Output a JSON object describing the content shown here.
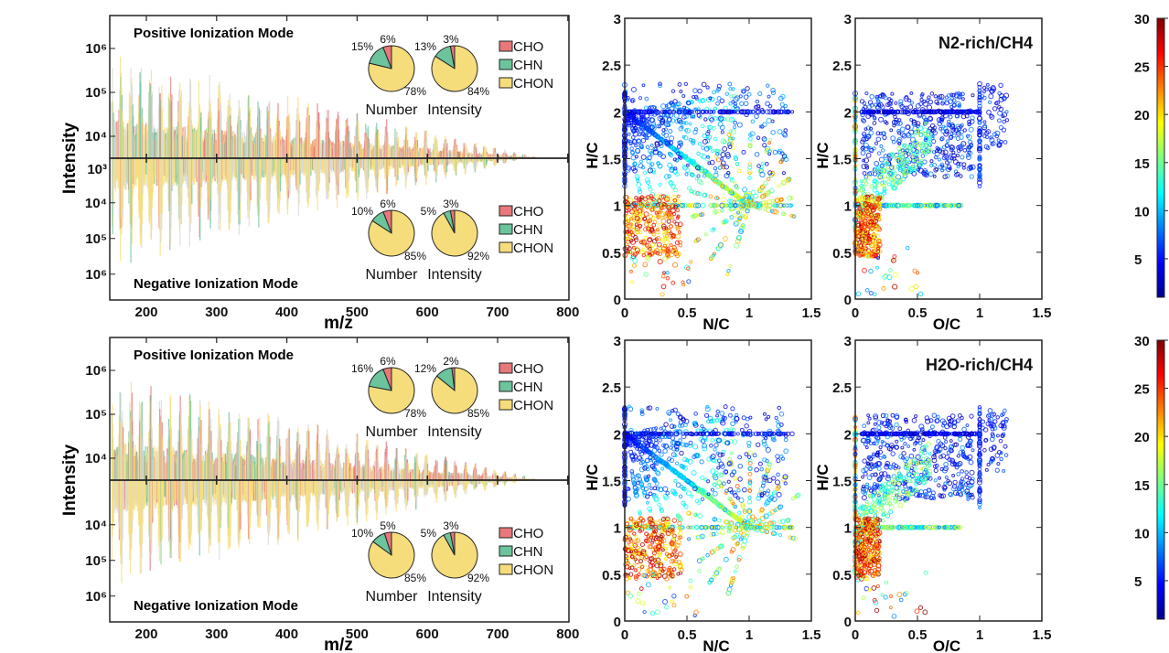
{
  "chart_data": [
    {
      "type": "bar",
      "panel": "spectra-n2-rich",
      "xlabel": "m/z",
      "ylabel": "Intensity",
      "xlim": [
        150,
        800
      ],
      "xticks": [
        "200",
        "300",
        "400",
        "500",
        "600",
        "700",
        "800"
      ],
      "yscale": "log",
      "yticks_positive": [
        "10⁶",
        "10⁵",
        "10⁴",
        "10³"
      ],
      "yticks_negative": [
        "10⁴",
        "10⁵",
        "10⁶"
      ],
      "positive_title": "Positive Ionization Mode",
      "negative_title": "Negative Ionization Mode",
      "legend": [
        "CHO",
        "CHN",
        "CHON"
      ],
      "pies": {
        "positive": {
          "number": {
            "label": "Number",
            "values": [
              6,
              15,
              78
            ],
            "labels": [
              "6%",
              "15%",
              "78%"
            ]
          },
          "intensity": {
            "label": "Intensity",
            "values": [
              3,
              13,
              84
            ],
            "labels": [
              "3%",
              "13%",
              "84%"
            ]
          }
        },
        "negative": {
          "number": {
            "label": "Number",
            "values": [
              6,
              10,
              85
            ],
            "labels": [
              "6%",
              "10%",
              "85%"
            ]
          },
          "intensity": {
            "label": "Intensity",
            "values": [
              3,
              5,
              92
            ],
            "labels": [
              "3%",
              "5%",
              "92%"
            ]
          }
        }
      }
    },
    {
      "type": "bar",
      "panel": "spectra-h2o-rich",
      "xlabel": "m/z",
      "ylabel": "Intensity",
      "xlim": [
        150,
        800
      ],
      "xticks": [
        "200",
        "300",
        "400",
        "500",
        "600",
        "700",
        "800"
      ],
      "yscale": "log",
      "yticks_positive": [
        "10⁶",
        "10⁵",
        "10⁴"
      ],
      "yticks_negative": [
        "10⁴",
        "10⁵",
        "10⁶"
      ],
      "positive_title": "Positive Ionization Mode",
      "negative_title": "Negative Ionization Mode",
      "legend": [
        "CHO",
        "CHN",
        "CHON"
      ],
      "pies": {
        "positive": {
          "number": {
            "label": "Number",
            "values": [
              6,
              16,
              78
            ],
            "labels": [
              "6%",
              "16%",
              "78%"
            ]
          },
          "intensity": {
            "label": "Intensity",
            "values": [
              2,
              12,
              85
            ],
            "labels": [
              "2%",
              "12%",
              "85%"
            ]
          }
        },
        "negative": {
          "number": {
            "label": "Number",
            "values": [
              5,
              10,
              85
            ],
            "labels": [
              "5%",
              "10%",
              "85%"
            ]
          },
          "intensity": {
            "label": "Intensity",
            "values": [
              3,
              5,
              92
            ],
            "labels": [
              "3%",
              "5%",
              "92%"
            ]
          }
        }
      }
    },
    {
      "type": "scatter",
      "panel": "nc-n2",
      "xlabel": "N/C",
      "ylabel": "H/C",
      "xlim": [
        0,
        1.5
      ],
      "ylim": [
        0,
        3
      ],
      "xticks": [
        "0",
        "0.5",
        "1",
        "1.5"
      ],
      "yticks": [
        "0",
        "0.5",
        "1",
        "1.5",
        "2",
        "2.5",
        "3"
      ]
    },
    {
      "type": "scatter",
      "panel": "oc-n2",
      "xlabel": "O/C",
      "ylabel": "H/C",
      "xlim": [
        0,
        1.5
      ],
      "ylim": [
        0,
        3
      ],
      "xticks": [
        "0",
        "0.5",
        "1",
        "1.5"
      ],
      "yticks": [
        "0",
        "0.5",
        "1",
        "1.5",
        "2",
        "2.5",
        "3"
      ],
      "title": "N2-rich/CH4"
    },
    {
      "type": "scatter",
      "panel": "nc-h2o",
      "xlabel": "N/C",
      "ylabel": "H/C",
      "xlim": [
        0,
        1.5
      ],
      "ylim": [
        0,
        3
      ],
      "xticks": [
        "0",
        "0.5",
        "1",
        "1.5"
      ],
      "yticks": [
        "0",
        "0.5",
        "1",
        "1.5",
        "2",
        "2.5",
        "3"
      ]
    },
    {
      "type": "scatter",
      "panel": "oc-h2o",
      "xlabel": "O/C",
      "ylabel": "H/C",
      "xlim": [
        0,
        1.5
      ],
      "ylim": [
        0,
        3
      ],
      "xticks": [
        "0",
        "0.5",
        "1",
        "1.5"
      ],
      "yticks": [
        "0",
        "0.5",
        "1",
        "1.5",
        "2",
        "2.5",
        "3"
      ],
      "title": "H2O-rich/CH4"
    }
  ],
  "colorbar": {
    "colormap": "jet",
    "range": [
      1,
      30
    ],
    "ticks": [
      "5",
      "10",
      "15",
      "20",
      "25",
      "30"
    ]
  },
  "colors": {
    "CHO": "#e8787a",
    "CHN": "#6cc49c",
    "CHON": "#f6dd7c",
    "other": "#d8d8d8"
  }
}
